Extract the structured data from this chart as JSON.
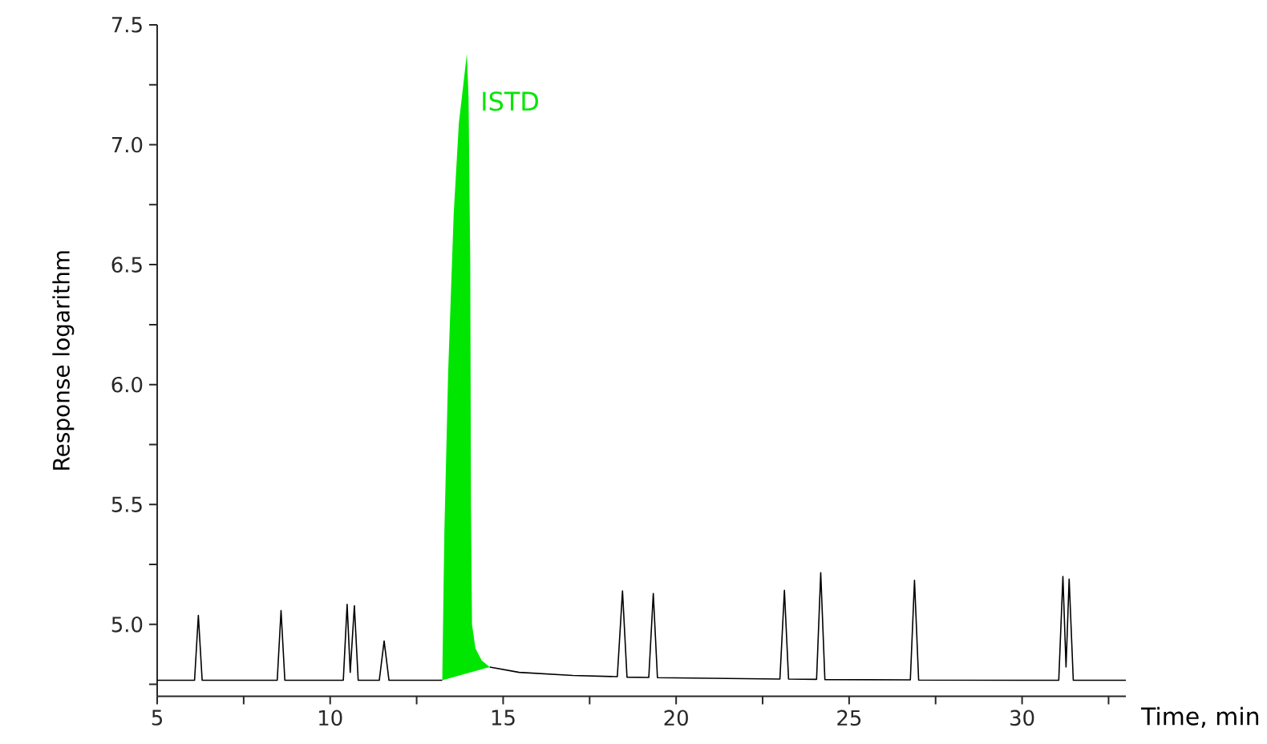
{
  "chart_data": {
    "type": "line",
    "xlabel": "Time, min",
    "ylabel": "Response logarithm",
    "xlim": [
      5,
      33
    ],
    "ylim": [
      4.7,
      7.5
    ],
    "xticks": [
      5,
      {
        "value": 7.5,
        "label": null
      },
      10,
      {
        "value": 12.5,
        "label": null
      },
      15,
      {
        "value": 17.5,
        "label": null
      },
      20,
      {
        "value": 22.5,
        "label": null
      },
      25,
      {
        "value": 27.5,
        "label": null
      },
      30,
      {
        "value": 32.5,
        "label": null
      }
    ],
    "yticks": [
      {
        "value": 4.75,
        "label": null
      },
      {
        "value": 5.0,
        "label": "5.0"
      },
      {
        "value": 5.25,
        "label": null
      },
      {
        "value": 5.5,
        "label": "5.5"
      },
      {
        "value": 5.75,
        "label": null
      },
      {
        "value": 6.0,
        "label": "6.0"
      },
      {
        "value": 6.25,
        "label": null
      },
      {
        "value": 6.5,
        "label": "6.5"
      },
      {
        "value": 6.75,
        "label": null
      },
      {
        "value": 7.0,
        "label": "7.0"
      },
      {
        "value": 7.25,
        "label": null
      },
      {
        "value": 7.5,
        "label": "7.5"
      }
    ],
    "series": [
      {
        "color": "#000000",
        "x": [
          5.0,
          6.08,
          6.19,
          6.3,
          8.47,
          8.58,
          8.69,
          10.38,
          10.49,
          10.58,
          10.7,
          10.81,
          11.42,
          11.56,
          11.7,
          13.24,
          13.9,
          14.61,
          15.46,
          17.01,
          18.3,
          18.45,
          18.58,
          19.21,
          19.34,
          19.46,
          23.0,
          23.13,
          23.25,
          24.06,
          24.18,
          24.3,
          26.77,
          26.89,
          27.01,
          31.06,
          31.18,
          31.27,
          31.36,
          31.48,
          33.0
        ],
        "values": [
          4.767,
          4.767,
          5.038,
          4.767,
          4.767,
          5.058,
          4.767,
          4.767,
          5.084,
          4.8,
          5.078,
          4.767,
          4.767,
          4.931,
          4.767,
          4.767,
          null,
          4.822,
          4.8,
          4.787,
          4.782,
          5.14,
          4.78,
          4.779,
          5.129,
          4.778,
          4.772,
          5.142,
          4.772,
          4.771,
          5.216,
          4.77,
          4.769,
          5.184,
          4.768,
          4.767,
          5.2,
          4.822,
          5.189,
          4.767,
          4.767
        ]
      },
      {
        "type": "area",
        "name": "ISTD",
        "color": "#00e600",
        "x": [
          13.24,
          13.3,
          13.41,
          13.57,
          13.72,
          13.88,
          13.95,
          14.0,
          14.05,
          14.07,
          14.1,
          14.2,
          14.38,
          14.61
        ],
        "values": [
          4.767,
          5.38,
          6.05,
          6.71,
          7.09,
          7.29,
          7.379,
          7.2,
          6.5,
          5.5,
          5.0,
          4.9,
          4.85,
          4.822
        ]
      }
    ]
  }
}
